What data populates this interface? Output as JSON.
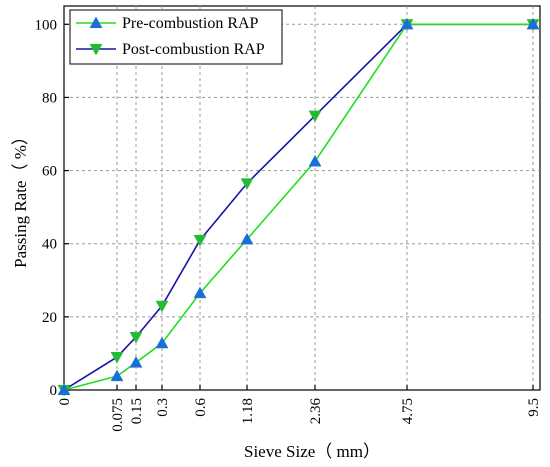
{
  "chart_data": {
    "type": "line",
    "title": "",
    "xlabel": "Sieve Size（ mm）",
    "ylabel": "Passing Rate（ %）",
    "x_ticks": [
      "0",
      "0.075",
      "0.15",
      "0.3",
      "0.6",
      "1.18",
      "2.36",
      "4.75",
      "9.5"
    ],
    "y_ticks": [
      0,
      20,
      40,
      60,
      80,
      100
    ],
    "ylim": [
      0,
      105
    ],
    "grid": true,
    "legend_position": "top-left",
    "series": [
      {
        "name": "Pre-combustion RAP",
        "color": "#22dd22",
        "marker": "triangle-up",
        "marker_color": "#1a6fd6",
        "x": [
          "0",
          "0.075",
          "0.15",
          "0.3",
          "0.6",
          "1.18",
          "2.36",
          "4.75",
          "9.5"
        ],
        "values": [
          0,
          3.8,
          7.5,
          12.8,
          26.5,
          41.2,
          62.5,
          100,
          100
        ]
      },
      {
        "name": "Post-combustion RAP",
        "color": "#1515a8",
        "marker": "triangle-down",
        "marker_color": "#22bb33",
        "x": [
          "0",
          "0.075",
          "0.15",
          "0.3",
          "0.6",
          "1.18",
          "2.36",
          "4.75",
          "9.5"
        ],
        "values": [
          0,
          9,
          14.5,
          23,
          41,
          56.5,
          75,
          100,
          100
        ]
      }
    ]
  }
}
